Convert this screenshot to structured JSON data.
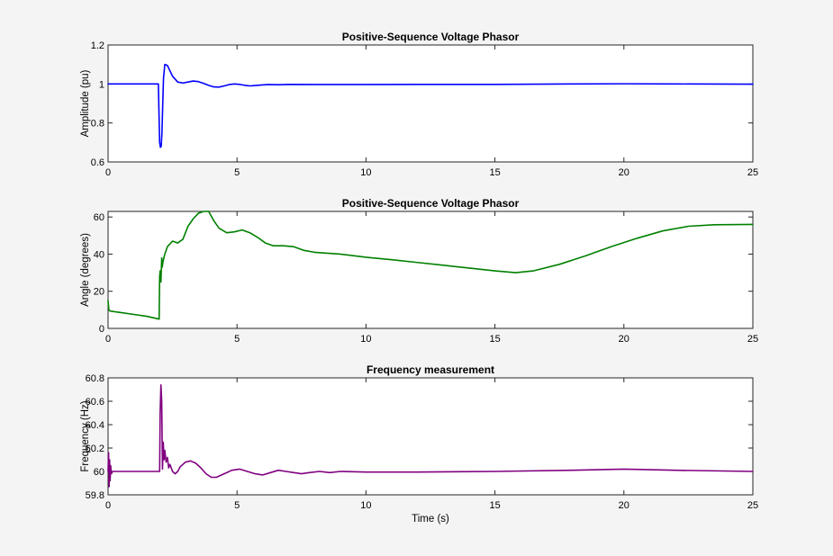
{
  "colors": {
    "figure_bg": "#f4f4f4",
    "axes_bg": "#ffffff",
    "axis": "#262626",
    "text": "#000000"
  },
  "chart_data": [
    {
      "type": "line",
      "title": "Positive-Sequence Voltage Phasor",
      "xlabel": "",
      "ylabel": "Amplitude (pu)",
      "xlim": [
        0,
        25
      ],
      "ylim": [
        0.6,
        1.2
      ],
      "xticks": [
        0,
        5,
        10,
        15,
        20,
        25
      ],
      "xtick_labels": [
        "0",
        "5",
        "10",
        "15",
        "20",
        "25"
      ],
      "yticks": [
        0.6,
        0.8,
        1,
        1.2
      ],
      "ytick_labels": [
        "0.6",
        "0.8",
        "1",
        "1.2"
      ],
      "grid": false,
      "legend": "none",
      "series": [
        {
          "color": "#0000ff",
          "x": [
            0,
            0.5,
            1.0,
            1.5,
            1.95,
            2.0,
            2.03,
            2.06,
            2.09,
            2.12,
            2.15,
            2.2,
            2.3,
            2.5,
            2.7,
            2.9,
            3.1,
            3.3,
            3.5,
            3.7,
            3.9,
            4.1,
            4.3,
            4.5,
            4.7,
            4.9,
            5.1,
            5.3,
            5.5,
            5.8,
            6.2,
            6.6,
            7.0,
            8,
            10,
            12,
            15,
            18,
            20,
            22,
            25
          ],
          "y": [
            1.0,
            1.0,
            1.0,
            1.0,
            1.0,
            0.7,
            0.675,
            0.68,
            0.75,
            0.9,
            1.03,
            1.1,
            1.095,
            1.04,
            1.01,
            1.005,
            1.01,
            1.015,
            1.012,
            1.003,
            0.993,
            0.985,
            0.984,
            0.99,
            0.997,
            1.0,
            0.998,
            0.993,
            0.99,
            0.993,
            0.997,
            0.996,
            0.998,
            0.997,
            0.997,
            0.998,
            0.998,
            1.0,
            1.001,
            1.0,
            0.999
          ]
        }
      ]
    },
    {
      "type": "line",
      "title": "Positive-Sequence Voltage Phasor",
      "xlabel": "",
      "ylabel": "Angle (degrees)",
      "xlim": [
        0,
        25
      ],
      "ylim": [
        0,
        63
      ],
      "xticks": [
        0,
        5,
        10,
        15,
        20,
        25
      ],
      "xtick_labels": [
        "0",
        "5",
        "10",
        "15",
        "20",
        "25"
      ],
      "yticks": [
        0,
        20,
        40,
        60
      ],
      "ytick_labels": [
        "0",
        "20",
        "40",
        "60"
      ],
      "grid": false,
      "legend": "none",
      "series": [
        {
          "color": "#008000",
          "x": [
            0,
            0.03,
            0.06,
            0.1,
            0.5,
            1.0,
            1.5,
            1.98,
            2.0,
            2.02,
            2.05,
            2.08,
            2.1,
            2.13,
            2.2,
            2.3,
            2.5,
            2.7,
            2.9,
            3.1,
            3.3,
            3.5,
            3.7,
            3.9,
            4.1,
            4.3,
            4.6,
            4.9,
            5.2,
            5.5,
            5.8,
            6.1,
            6.4,
            6.8,
            7.2,
            7.6,
            8.0,
            8.5,
            9,
            10,
            11,
            12,
            13,
            14,
            15,
            15.8,
            16.5,
            17.5,
            18.5,
            19.5,
            20.5,
            21.5,
            22.5,
            23.5,
            25
          ],
          "y": [
            15,
            10,
            9.5,
            9.3,
            8.5,
            7.5,
            6.5,
            5,
            28,
            31,
            25,
            38,
            33,
            36,
            40,
            44,
            47,
            46,
            48,
            55,
            59,
            62,
            64,
            63,
            58,
            54,
            51.5,
            52,
            53,
            51.5,
            49,
            46,
            44.5,
            44.5,
            44,
            42,
            41,
            40.5,
            40,
            38.3,
            37,
            35.5,
            34,
            32.5,
            31,
            30,
            31,
            34.5,
            39,
            44,
            48.5,
            52.5,
            55,
            55.8,
            56
          ]
        }
      ]
    },
    {
      "type": "line",
      "title": "Frequency measurement",
      "xlabel": "Time (s)",
      "ylabel": "Frequency (Hz)",
      "xlim": [
        0,
        25
      ],
      "ylim": [
        59.8,
        60.8
      ],
      "xticks": [
        0,
        5,
        10,
        15,
        20,
        25
      ],
      "xtick_labels": [
        "0",
        "5",
        "10",
        "15",
        "20",
        "25"
      ],
      "yticks": [
        59.8,
        60,
        60.2,
        60.4,
        60.6,
        60.8
      ],
      "ytick_labels": [
        "59.8",
        "60",
        "60.2",
        "60.4",
        "60.6",
        "60.8"
      ],
      "grid": false,
      "legend": "none",
      "series": [
        {
          "color": "#800080",
          "x": [
            0,
            0.02,
            0.04,
            0.06,
            0.08,
            0.1,
            0.13,
            0.17,
            0.25,
            0.5,
            1.0,
            1.5,
            2.0,
            2.02,
            2.05,
            2.08,
            2.11,
            2.14,
            2.17,
            2.2,
            2.25,
            2.3,
            2.35,
            2.4,
            2.5,
            2.6,
            2.7,
            2.8,
            2.9,
            3.0,
            3.2,
            3.4,
            3.6,
            3.8,
            4.0,
            4.2,
            4.5,
            4.8,
            5.1,
            5.4,
            5.7,
            6.0,
            6.3,
            6.6,
            6.9,
            7.2,
            7.5,
            7.8,
            8.2,
            8.6,
            9,
            10,
            12,
            15,
            18,
            20,
            22,
            25
          ],
          "y": [
            60.0,
            60.16,
            59.87,
            60.1,
            59.92,
            60.05,
            59.98,
            60.0,
            60.0,
            60.0,
            60.0,
            60.0,
            60.0,
            60.5,
            60.74,
            60.6,
            60.02,
            60.25,
            60.1,
            60.18,
            60.08,
            60.12,
            60.03,
            60.06,
            60.0,
            59.98,
            60.0,
            60.04,
            60.06,
            60.08,
            60.09,
            60.07,
            60.03,
            59.98,
            59.95,
            59.95,
            59.98,
            60.01,
            60.02,
            60.0,
            59.98,
            59.97,
            59.99,
            60.01,
            60.0,
            59.99,
            59.98,
            59.99,
            60.0,
            59.99,
            60.0,
            59.995,
            59.995,
            60.0,
            60.01,
            60.02,
            60.01,
            60.0
          ]
        }
      ]
    }
  ]
}
